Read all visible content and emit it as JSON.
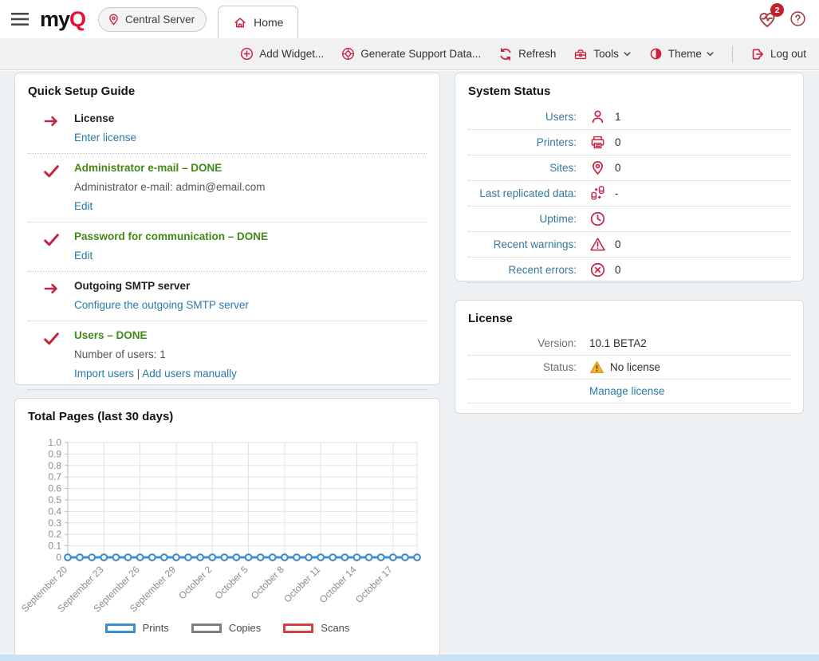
{
  "header": {
    "logo_my": "my",
    "logo_q": "Q",
    "server_button": "Central Server",
    "tab": "Home",
    "notifications_badge": "2"
  },
  "toolbar": {
    "add_widget": "Add Widget...",
    "generate_support": "Generate Support Data...",
    "refresh": "Refresh",
    "tools": "Tools",
    "theme": "Theme",
    "logout": "Log out"
  },
  "quick_setup": {
    "title": "Quick Setup Guide",
    "links_separator": " | ",
    "items": [
      {
        "status": "todo",
        "title": "License",
        "text": "",
        "links": [
          "Enter license"
        ]
      },
      {
        "status": "done",
        "title": "Administrator e-mail – DONE",
        "text": "Administrator e-mail: admin@email.com",
        "links": [
          "Edit"
        ]
      },
      {
        "status": "done",
        "title": "Password for communication – DONE",
        "text": "",
        "links": [
          "Edit"
        ]
      },
      {
        "status": "todo",
        "title": "Outgoing SMTP server",
        "text": "",
        "links": [
          "Configure the outgoing SMTP server"
        ]
      },
      {
        "status": "done",
        "title": "Users – DONE",
        "text": "Number of users: 1",
        "links": [
          "Import users",
          "Add users manually"
        ]
      }
    ]
  },
  "system_status": {
    "title": "System Status",
    "rows": [
      {
        "label": "Users:",
        "icon": "user-icon",
        "value": "1"
      },
      {
        "label": "Printers:",
        "icon": "printer-icon",
        "value": "0"
      },
      {
        "label": "Sites:",
        "icon": "location-pin-icon",
        "value": "0"
      },
      {
        "label": "Last replicated data:",
        "icon": "replication-icon",
        "value": "-"
      },
      {
        "label": "Uptime:",
        "icon": "clock-icon",
        "value": ""
      },
      {
        "label": "Recent warnings:",
        "icon": "warning-triangle-icon",
        "value": "0"
      },
      {
        "label": "Recent errors:",
        "icon": "error-circle-icon",
        "value": "0"
      }
    ]
  },
  "license": {
    "title": "License",
    "version_label": "Version:",
    "version_value": "10.1 BETA2",
    "status_label": "Status:",
    "status_value": "No license",
    "manage_link": "Manage license"
  },
  "chart_data": {
    "type": "line",
    "title": "Total Pages (last 30 days)",
    "n_points": 30,
    "label_every": 3,
    "x_tick_labels": [
      "September 20",
      "September 23",
      "September 26",
      "September 29",
      "October 2",
      "October 5",
      "October 8",
      "October 11",
      "October 14",
      "October 17"
    ],
    "ylim": [
      0,
      1.0
    ],
    "ytick_labels": [
      "0",
      "0.1",
      "0.2",
      "0.3",
      "0.4",
      "0.5",
      "0.6",
      "0.7",
      "0.8",
      "0.9",
      "1.0"
    ],
    "grid": true,
    "legend_position": "bottom",
    "series": [
      {
        "name": "Prints",
        "color": "#3e8ed0",
        "values": [
          0,
          0,
          0,
          0,
          0,
          0,
          0,
          0,
          0,
          0,
          0,
          0,
          0,
          0,
          0,
          0,
          0,
          0,
          0,
          0,
          0,
          0,
          0,
          0,
          0,
          0,
          0,
          0,
          0,
          0
        ]
      },
      {
        "name": "Copies",
        "color": "#7f7f7f",
        "values": [
          0,
          0,
          0,
          0,
          0,
          0,
          0,
          0,
          0,
          0,
          0,
          0,
          0,
          0,
          0,
          0,
          0,
          0,
          0,
          0,
          0,
          0,
          0,
          0,
          0,
          0,
          0,
          0,
          0,
          0
        ]
      },
      {
        "name": "Scans",
        "color": "#d84040",
        "values": [
          0,
          0,
          0,
          0,
          0,
          0,
          0,
          0,
          0,
          0,
          0,
          0,
          0,
          0,
          0,
          0,
          0,
          0,
          0,
          0,
          0,
          0,
          0,
          0,
          0,
          0,
          0,
          0,
          0,
          0
        ]
      }
    ]
  },
  "colors": {
    "accent_crimson": "#c32340",
    "logo_red": "#e31235",
    "link_blue": "#2a7aa8",
    "status_label_blue": "#35789f",
    "done_green": "#418a16",
    "warning_yellow": "#f2a71e",
    "toolbar_bg": "#f1f1f1",
    "page_bg": "#eef1f4",
    "scrollbar_track": "#cbe0f1"
  }
}
